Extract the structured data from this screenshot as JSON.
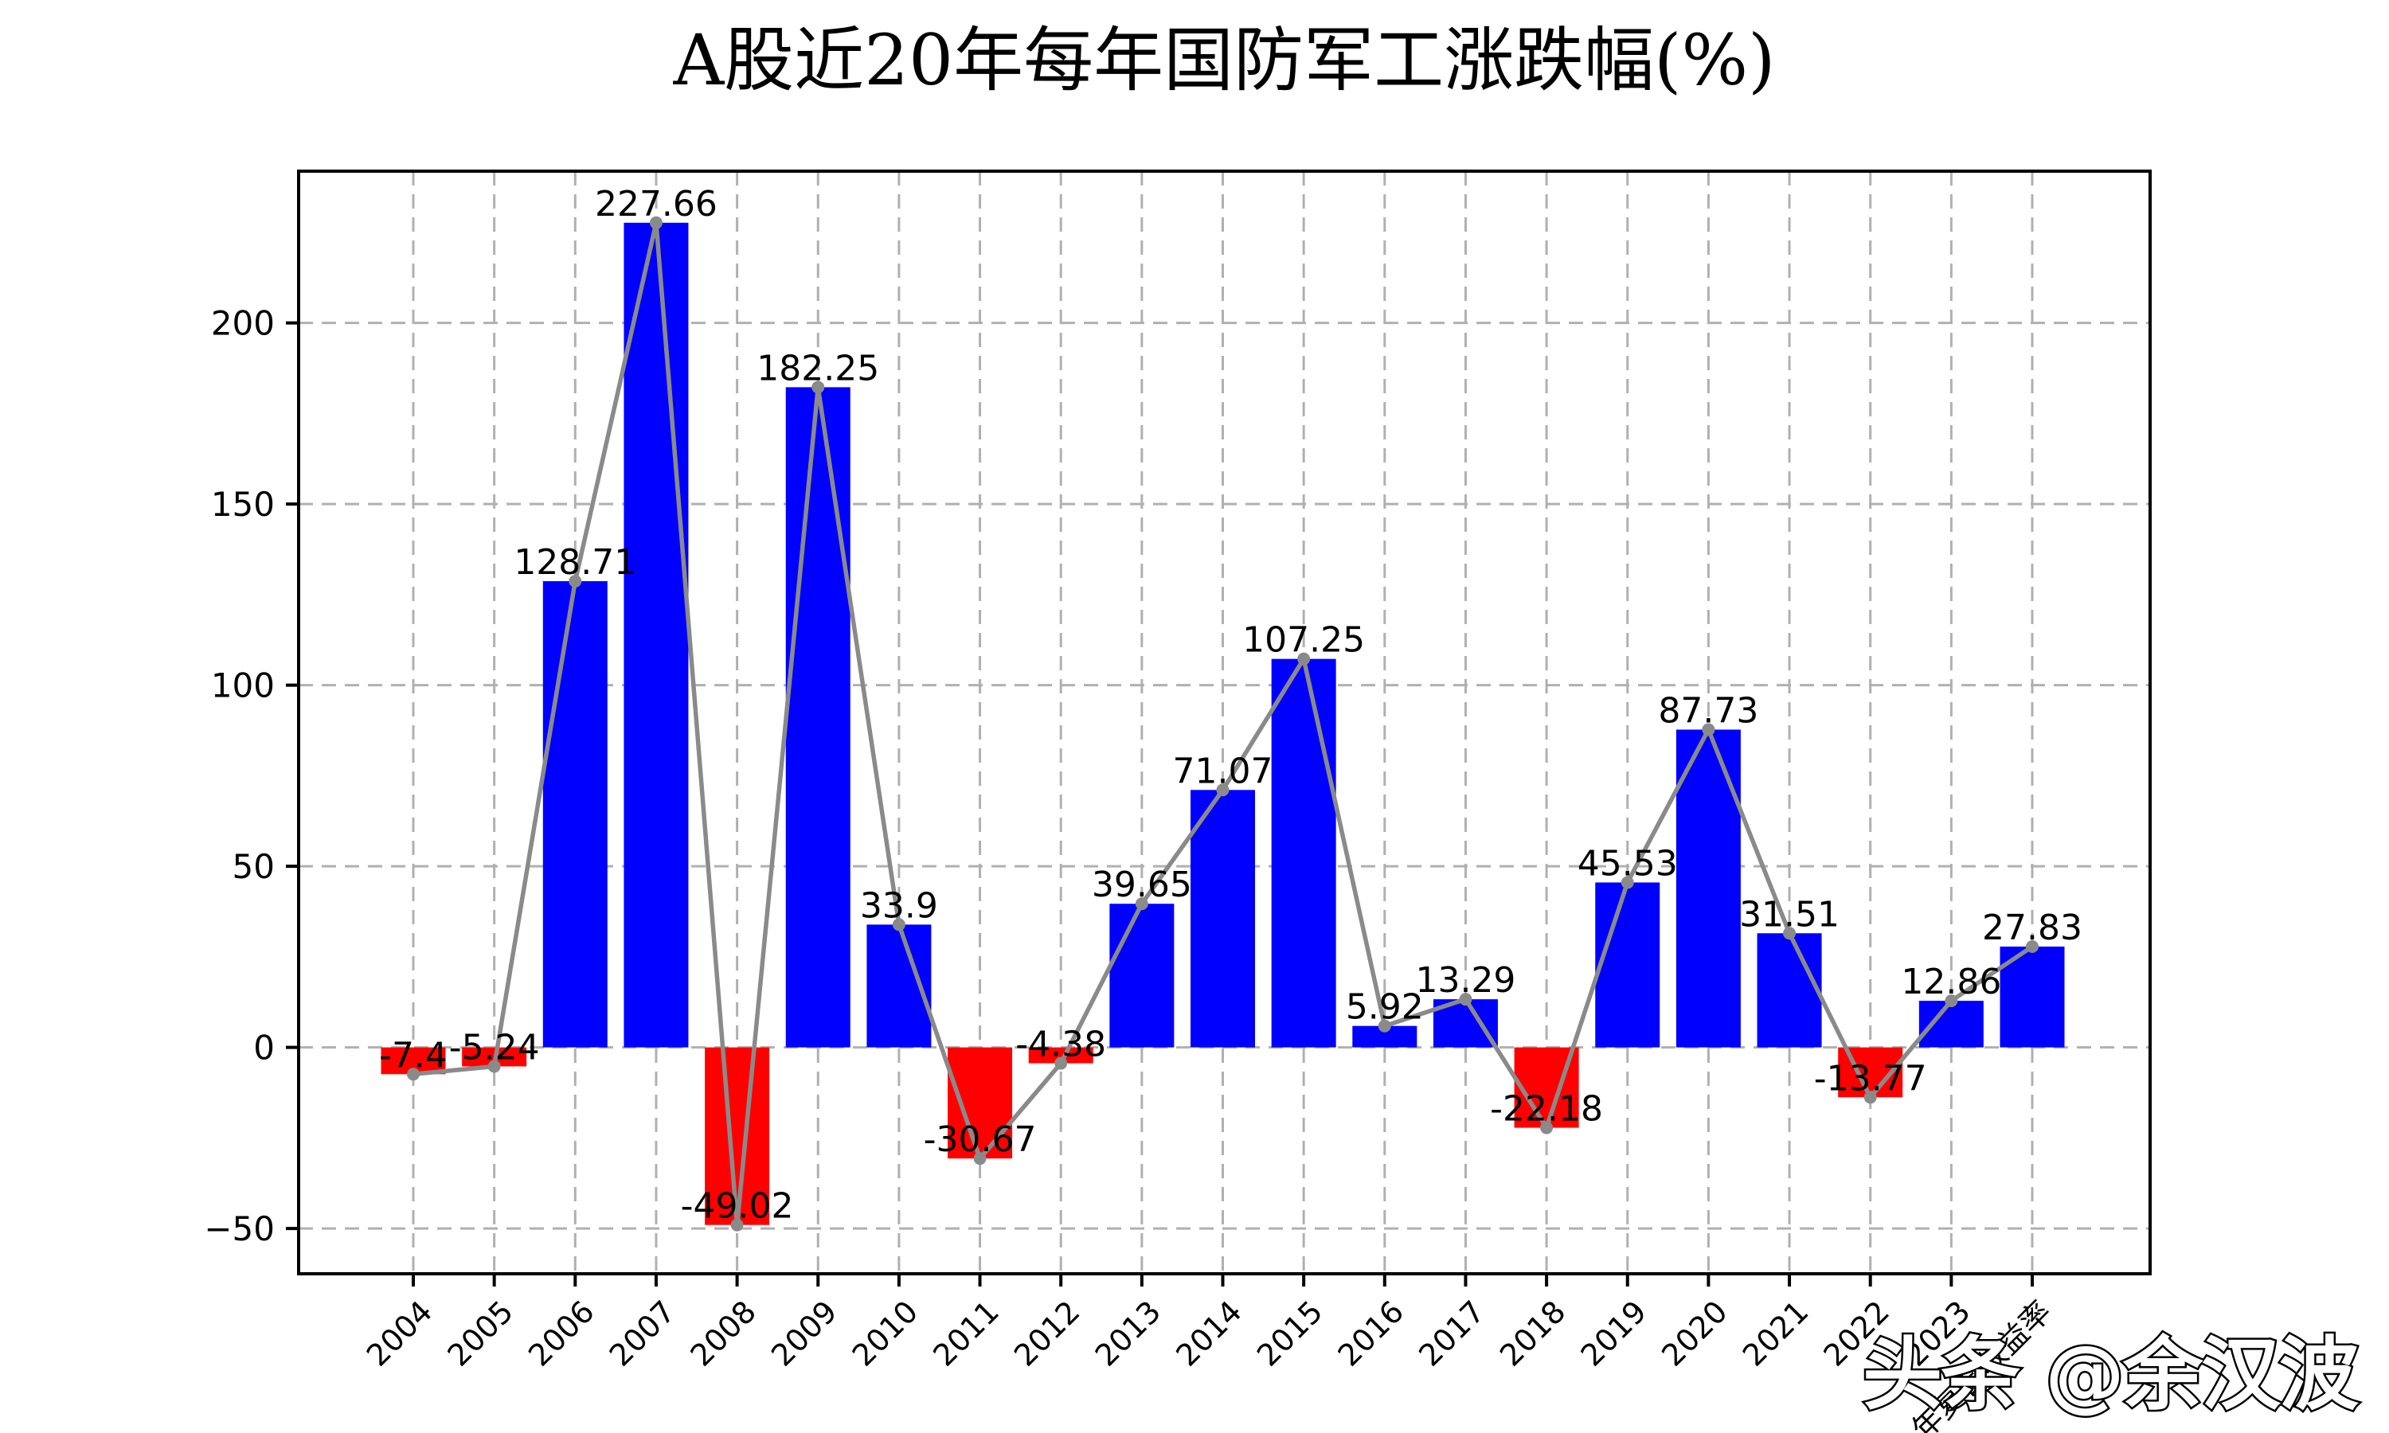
{
  "watermark": {
    "text": "头条 @余汉波"
  },
  "chart_data": {
    "type": "bar",
    "title": "A股近20年每年国防军工涨跌幅(%)",
    "subtitle": "",
    "xlabel": "",
    "ylabel": "",
    "categories": [
      "2004",
      "2005",
      "2006",
      "2007",
      "2008",
      "2009",
      "2010",
      "2011",
      "2012",
      "2013",
      "2014",
      "2015",
      "2016",
      "2017",
      "2018",
      "2019",
      "2020",
      "2021",
      "2022",
      "2023",
      "年复合收益率"
    ],
    "values": [
      -7.4,
      -5.24,
      128.71,
      227.66,
      -49.02,
      182.25,
      33.9,
      -30.67,
      -4.38,
      39.65,
      71.07,
      107.25,
      5.92,
      13.29,
      -22.18,
      45.53,
      87.73,
      31.51,
      -13.77,
      12.86,
      27.83
    ],
    "value_labels": [
      "-7.4",
      "-5.24",
      "128.71",
      "227.66",
      "-49.02",
      "182.25",
      "33.9",
      "-30.67",
      "-4.38",
      "39.65",
      "71.07",
      "107.25",
      "5.92",
      "13.29",
      "-22.18",
      "45.53",
      "87.73",
      "31.51",
      "-13.77",
      "12.86",
      "27.83"
    ],
    "series": [
      {
        "name": "yearly-change-bars",
        "type": "bar",
        "color_rule": "positive blue, negative red"
      },
      {
        "name": "yearly-change-line",
        "type": "line",
        "marker": "circle"
      }
    ],
    "ylim": [
      -62.5,
      241.9
    ],
    "yticks": [
      -50,
      0,
      50,
      100,
      150,
      200
    ],
    "ytick_labels": [
      "−50",
      "0",
      "50",
      "100",
      "150",
      "200"
    ],
    "xtick_rotation_deg": 45,
    "grid": {
      "visible": true,
      "style": "dashed",
      "axes": "both"
    },
    "legend_visible": false,
    "colors": {
      "bar_positive": "#0000ff",
      "bar_negative": "#ff0000",
      "line": "#8a8a8a",
      "grid": "#b0b0b0",
      "axis": "#000000",
      "label_text": "#000000",
      "background": "#ffffff"
    }
  }
}
